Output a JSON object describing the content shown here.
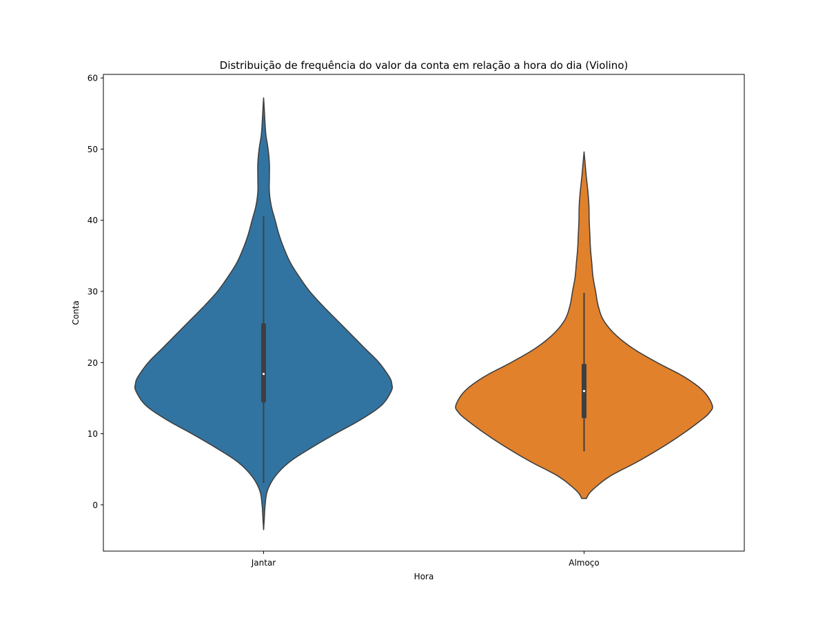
{
  "chart_data": {
    "type": "violin",
    "title": "Distribuição de frequência do valor da conta em relação a hora do dia (Violino)",
    "xlabel": "Hora",
    "ylabel": "Conta",
    "categories": [
      "Jantar",
      "Almoço"
    ],
    "ylim": [
      -6.5,
      60.5
    ],
    "yticks": [
      0,
      10,
      20,
      30,
      40,
      50,
      60
    ],
    "ytick_labels": [
      "0",
      "10",
      "20",
      "30",
      "40",
      "50",
      "60"
    ],
    "grid": false,
    "series": [
      {
        "category": "Jantar",
        "color": "#3274a1",
        "min": 3.07,
        "q1": 14.4,
        "median": 18.4,
        "q3": 25.5,
        "max": 40.55,
        "kde_range": [
          -3.5,
          57.2
        ],
        "density": [
          [
            -3.5,
            0.0
          ],
          [
            -2,
            0.005
          ],
          [
            0,
            0.012
          ],
          [
            2,
            0.03
          ],
          [
            4,
            0.09
          ],
          [
            6,
            0.2
          ],
          [
            8,
            0.37
          ],
          [
            10,
            0.56
          ],
          [
            12,
            0.76
          ],
          [
            14,
            0.92
          ],
          [
            16,
            0.996
          ],
          [
            17,
            1.0
          ],
          [
            18,
            0.98
          ],
          [
            20,
            0.9
          ],
          [
            22,
            0.79
          ],
          [
            24,
            0.68
          ],
          [
            26,
            0.57
          ],
          [
            28,
            0.46
          ],
          [
            30,
            0.36
          ],
          [
            32,
            0.28
          ],
          [
            34,
            0.21
          ],
          [
            36,
            0.16
          ],
          [
            38,
            0.12
          ],
          [
            40,
            0.09
          ],
          [
            42,
            0.06
          ],
          [
            44,
            0.045
          ],
          [
            46,
            0.045
          ],
          [
            48,
            0.045
          ],
          [
            50,
            0.035
          ],
          [
            52,
            0.018
          ],
          [
            54,
            0.01
          ],
          [
            56,
            0.004
          ],
          [
            57.2,
            0.0
          ]
        ]
      },
      {
        "category": "Almoço",
        "color": "#e1812c",
        "min": 7.51,
        "q1": 12.2,
        "median": 16.0,
        "q3": 19.8,
        "max": 29.8,
        "kde_range": [
          0.9,
          49.6
        ],
        "density": [
          [
            0.9,
            0.018
          ],
          [
            2,
            0.06
          ],
          [
            4,
            0.2
          ],
          [
            6,
            0.41
          ],
          [
            8,
            0.6
          ],
          [
            10,
            0.77
          ],
          [
            12,
            0.92
          ],
          [
            13,
            0.98
          ],
          [
            14,
            1.0
          ],
          [
            16,
            0.93
          ],
          [
            18,
            0.78
          ],
          [
            20,
            0.57
          ],
          [
            22,
            0.38
          ],
          [
            24,
            0.24
          ],
          [
            26,
            0.15
          ],
          [
            28,
            0.11
          ],
          [
            30,
            0.09
          ],
          [
            32,
            0.07
          ],
          [
            34,
            0.06
          ],
          [
            36,
            0.05
          ],
          [
            38,
            0.045
          ],
          [
            40,
            0.04
          ],
          [
            42,
            0.038
          ],
          [
            44,
            0.03
          ],
          [
            46,
            0.018
          ],
          [
            48,
            0.008
          ],
          [
            49.6,
            0.0
          ]
        ]
      }
    ]
  }
}
